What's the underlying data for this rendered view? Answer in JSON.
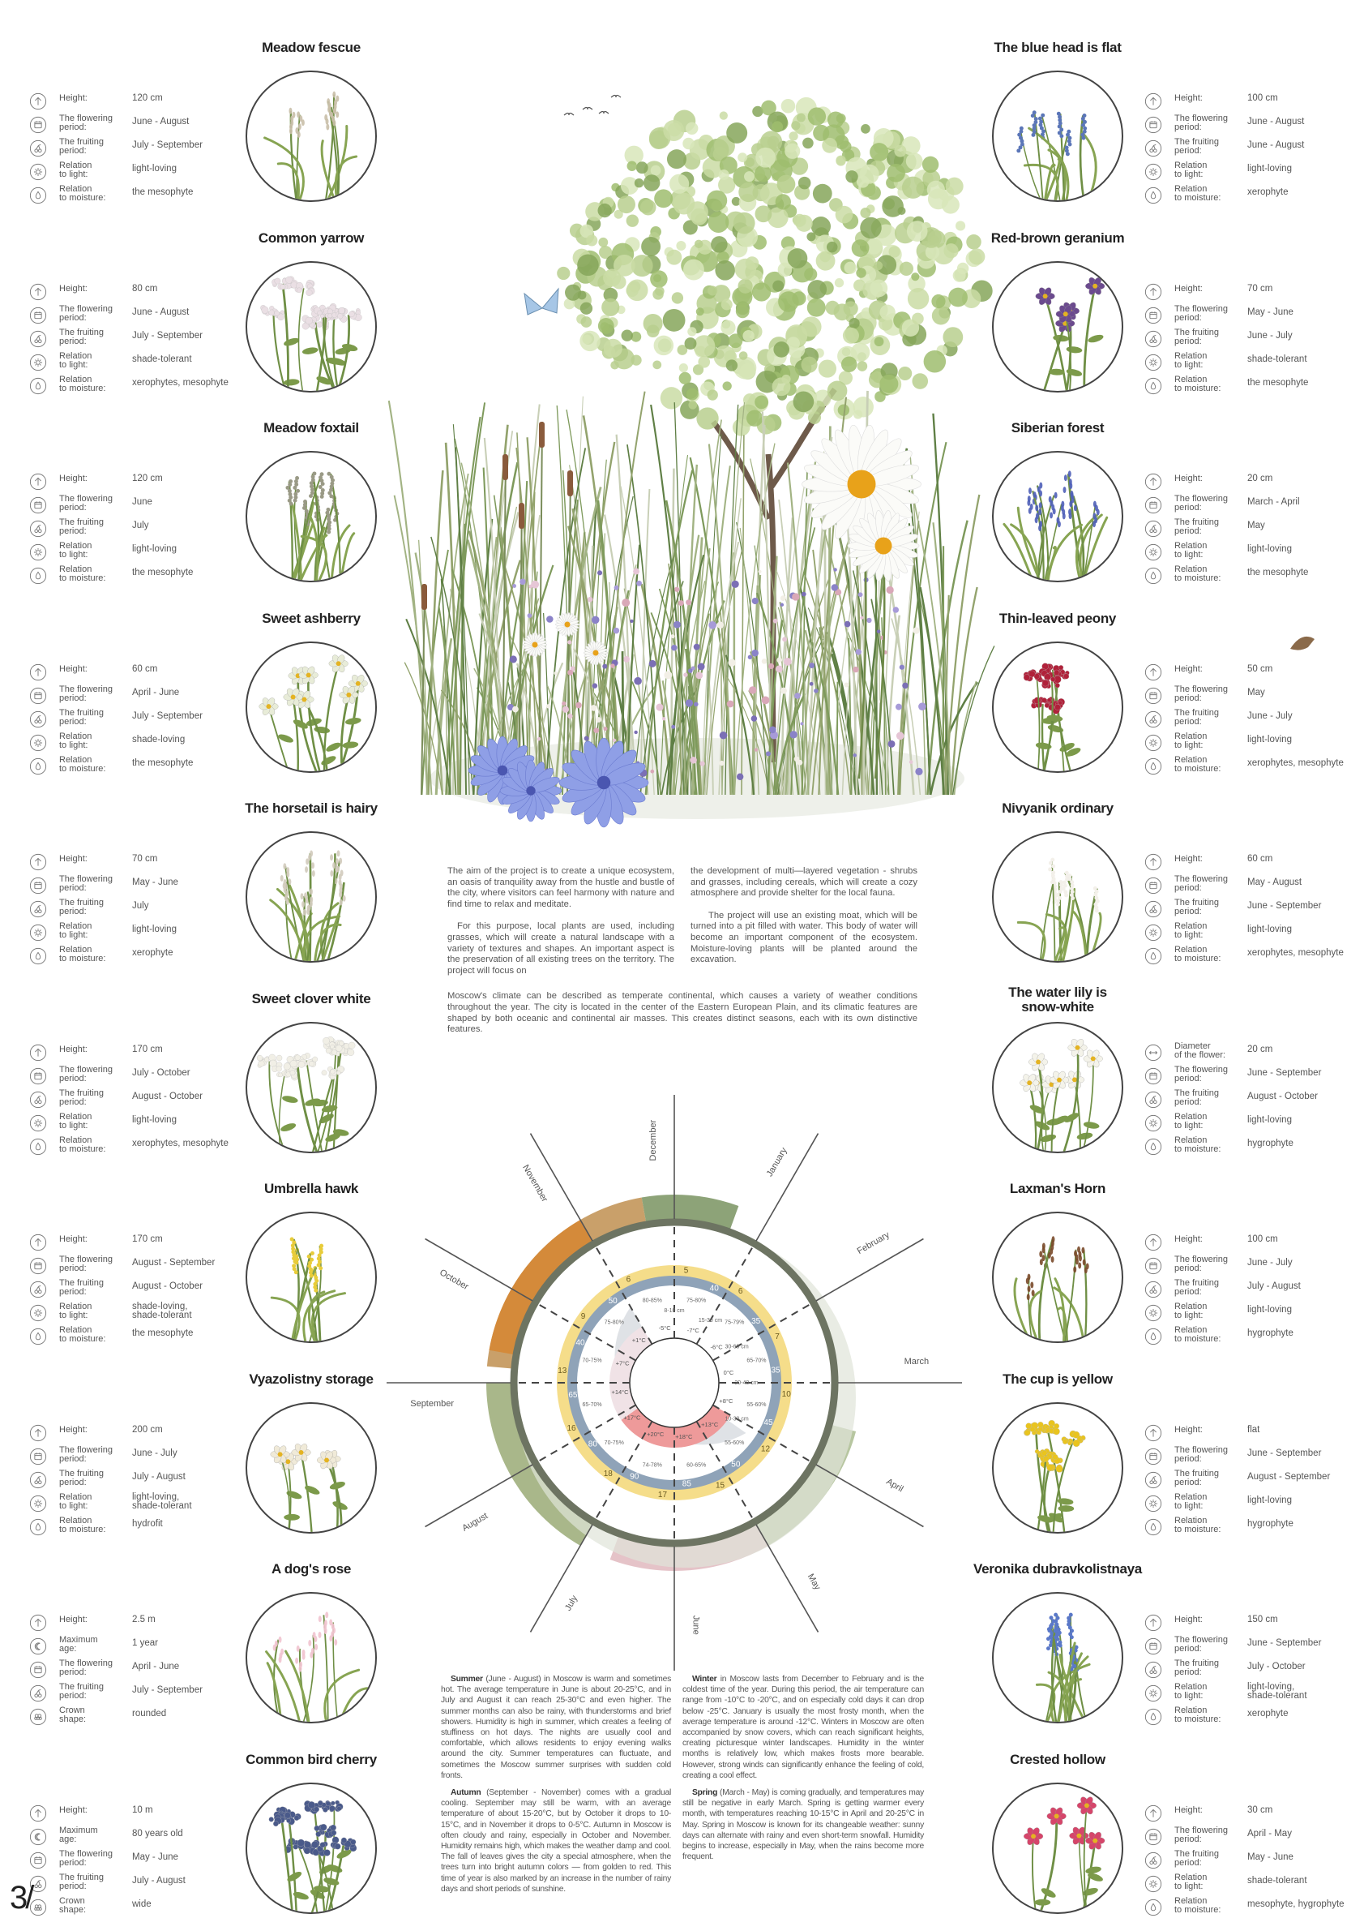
{
  "labels": {
    "height": "Height:",
    "flowering": "The flowering\nperiod:",
    "fruiting": "The fruiting\nperiod:",
    "light": "Relation\nto light:",
    "moisture": "Relation\nto moisture:",
    "max_age": "Maximum\nage:",
    "crown": "Crown\nshape:",
    "diameter": "Diameter\nof the flower:"
  },
  "plants_left": [
    {
      "name": "Meadow fescue",
      "flower_color": "#c9bfa8",
      "rows": [
        [
          "height-icon",
          "height",
          "120 cm"
        ],
        [
          "calendar-icon",
          "flowering",
          "June - August"
        ],
        [
          "cherry-icon",
          "fruiting",
          "July - September"
        ],
        [
          "sun-icon",
          "light",
          "light-loving"
        ],
        [
          "drop-icon",
          "moisture",
          "the mesophyte"
        ]
      ]
    },
    {
      "name": "Common yarrow",
      "flower_color": "#eadfe4",
      "rows": [
        [
          "height-icon",
          "height",
          "80 cm"
        ],
        [
          "calendar-icon",
          "flowering",
          "June - August"
        ],
        [
          "cherry-icon",
          "fruiting",
          "July - September"
        ],
        [
          "sun-icon",
          "light",
          "shade-tolerant"
        ],
        [
          "drop-icon",
          "moisture",
          "xerophytes, mesophyte"
        ]
      ]
    },
    {
      "name": "Meadow foxtail",
      "flower_color": "#9a9a86",
      "rows": [
        [
          "height-icon",
          "height",
          "120 cm"
        ],
        [
          "calendar-icon",
          "flowering",
          "June"
        ],
        [
          "cherry-icon",
          "fruiting",
          "July"
        ],
        [
          "sun-icon",
          "light",
          "light-loving"
        ],
        [
          "drop-icon",
          "moisture",
          "the mesophyte"
        ]
      ]
    },
    {
      "name": "Sweet ashberry",
      "flower_color": "#e8ecd8",
      "rows": [
        [
          "height-icon",
          "height",
          "60 cm"
        ],
        [
          "calendar-icon",
          "flowering",
          "April - June"
        ],
        [
          "cherry-icon",
          "fruiting",
          "July - September"
        ],
        [
          "sun-icon",
          "light",
          "shade-loving"
        ],
        [
          "drop-icon",
          "moisture",
          "the mesophyte"
        ]
      ]
    },
    {
      "name": "The horsetail is hairy",
      "flower_color": "#d2cbbd",
      "rows": [
        [
          "height-icon",
          "height",
          "70 cm"
        ],
        [
          "calendar-icon",
          "flowering",
          "May - June"
        ],
        [
          "cherry-icon",
          "fruiting",
          "July"
        ],
        [
          "sun-icon",
          "light",
          "light-loving"
        ],
        [
          "drop-icon",
          "moisture",
          "xerophyte"
        ]
      ]
    },
    {
      "name": "Sweet clover white",
      "flower_color": "#f1efe6",
      "rows": [
        [
          "height-icon",
          "height",
          "170 cm"
        ],
        [
          "calendar-icon",
          "flowering",
          "July - October"
        ],
        [
          "cherry-icon",
          "fruiting",
          "August - October"
        ],
        [
          "sun-icon",
          "light",
          "light-loving"
        ],
        [
          "drop-icon",
          "moisture",
          "xerophytes, mesophyte"
        ]
      ]
    },
    {
      "name": "Umbrella hawk",
      "flower_color": "#e8cc3a",
      "rows": [
        [
          "height-icon",
          "height",
          "170  cm"
        ],
        [
          "calendar-icon",
          "flowering",
          "August - September"
        ],
        [
          "cherry-icon",
          "fruiting",
          "August - October"
        ],
        [
          "sun-icon",
          "light",
          "shade-loving,\nshade-tolerant"
        ],
        [
          "drop-icon",
          "moisture",
          "the mesophyte"
        ]
      ]
    },
    {
      "name": "Vyazolistny storage",
      "flower_color": "#f0ead8",
      "rows": [
        [
          "height-icon",
          "height",
          "200 cm"
        ],
        [
          "calendar-icon",
          "flowering",
          "June - July"
        ],
        [
          "cherry-icon",
          "fruiting",
          "July - August"
        ],
        [
          "sun-icon",
          "light",
          "light-loving,\nshade-tolerant"
        ],
        [
          "drop-icon",
          "moisture",
          "hydrofit"
        ]
      ]
    },
    {
      "name": "A dog's rose",
      "flower_color": "#f1c3cf",
      "rows": [
        [
          "height-icon",
          "height",
          "2.5 m"
        ],
        [
          "age-icon",
          "max_age",
          "1 year"
        ],
        [
          "calendar-icon",
          "flowering",
          "April - June"
        ],
        [
          "cherry-icon",
          "fruiting",
          "July - September"
        ],
        [
          "crown-icon",
          "crown",
          "rounded"
        ]
      ]
    },
    {
      "name": "Common bird cherry",
      "flower_color": "#4a5a8a",
      "rows": [
        [
          "height-icon",
          "height",
          "10 m"
        ],
        [
          "age-icon",
          "max_age",
          "80 years old"
        ],
        [
          "calendar-icon",
          "flowering",
          "May - June"
        ],
        [
          "cherry-icon",
          "fruiting",
          "July - August"
        ],
        [
          "crown-icon",
          "crown",
          "wide"
        ]
      ]
    }
  ],
  "plants_right": [
    {
      "name": "The blue head is flat",
      "flower_color": "#5b76b8",
      "rows": [
        [
          "height-icon",
          "height",
          "100 cm"
        ],
        [
          "calendar-icon",
          "flowering",
          "June - August"
        ],
        [
          "cherry-icon",
          "fruiting",
          "June - August"
        ],
        [
          "sun-icon",
          "light",
          "light-loving"
        ],
        [
          "drop-icon",
          "moisture",
          "xerophyte"
        ]
      ]
    },
    {
      "name": "Red-brown geranium",
      "flower_color": "#6b4a8e",
      "rows": [
        [
          "height-icon",
          "height",
          " 70 cm"
        ],
        [
          "calendar-icon",
          "flowering",
          "May - June"
        ],
        [
          "cherry-icon",
          "fruiting",
          "June - July"
        ],
        [
          "sun-icon",
          "light",
          "shade-tolerant"
        ],
        [
          "drop-icon",
          "moisture",
          "the mesophyte"
        ]
      ]
    },
    {
      "name": "Siberian forest",
      "flower_color": "#4f5fb8",
      "rows": [
        [
          "height-icon",
          "height",
          "20 cm"
        ],
        [
          "calendar-icon",
          "flowering",
          "March - April"
        ],
        [
          "cherry-icon",
          "fruiting",
          "May"
        ],
        [
          "sun-icon",
          "light",
          "light-loving"
        ],
        [
          "drop-icon",
          "moisture",
          "the mesophyte"
        ]
      ]
    },
    {
      "name": "Thin-leaved peony",
      "flower_color": "#b0213a",
      "rows": [
        [
          "height-icon",
          "height",
          "50 cm"
        ],
        [
          "calendar-icon",
          "flowering",
          "May"
        ],
        [
          "cherry-icon",
          "fruiting",
          "June - July"
        ],
        [
          "sun-icon",
          "light",
          "light-loving"
        ],
        [
          "drop-icon",
          "moisture",
          "xerophytes, mesophyte"
        ]
      ]
    },
    {
      "name": "Nivyanik ordinary",
      "flower_color": "#f3f0ea",
      "rows": [
        [
          "height-icon",
          "height",
          "60 cm"
        ],
        [
          "calendar-icon",
          "flowering",
          "May - August"
        ],
        [
          "cherry-icon",
          "fruiting",
          "June - September"
        ],
        [
          "sun-icon",
          "light",
          "light-loving"
        ],
        [
          "drop-icon",
          "moisture",
          "xerophytes, mesophyte"
        ]
      ]
    },
    {
      "name": "The water lily is\nsnow-white",
      "flower_color": "#f4f3ea",
      "rows": [
        [
          "diameter-icon",
          "diameter",
          "20 cm"
        ],
        [
          "calendar-icon",
          "flowering",
          "June - September"
        ],
        [
          "cherry-icon",
          "fruiting",
          "August - October"
        ],
        [
          "sun-icon",
          "light",
          "light-loving"
        ],
        [
          "drop-icon",
          "moisture",
          "hygrophyte"
        ]
      ]
    },
    {
      "name": "Laxman's Horn",
      "flower_color": "#7a4a2a",
      "rows": [
        [
          "height-icon",
          "height",
          "100 cm"
        ],
        [
          "calendar-icon",
          "flowering",
          "June - July"
        ],
        [
          "cherry-icon",
          "fruiting",
          "July - August"
        ],
        [
          "sun-icon",
          "light",
          "light-loving"
        ],
        [
          "drop-icon",
          "moisture",
          "hygrophyte"
        ]
      ]
    },
    {
      "name": "The cup is yellow",
      "flower_color": "#e9c41e",
      "rows": [
        [
          "height-icon",
          "height",
          "flat"
        ],
        [
          "calendar-icon",
          "flowering",
          "June - September"
        ],
        [
          "cherry-icon",
          "fruiting",
          "August - September"
        ],
        [
          "sun-icon",
          "light",
          "light-loving"
        ],
        [
          "drop-icon",
          "moisture",
          "hygrophyte"
        ]
      ]
    },
    {
      "name": "Veronika dubravkolistnaya",
      "flower_color": "#5a78c8",
      "rows": [
        [
          "height-icon",
          "height",
          "150 cm"
        ],
        [
          "calendar-icon",
          "flowering",
          "June - September"
        ],
        [
          "cherry-icon",
          "fruiting",
          "July - October"
        ],
        [
          "sun-icon",
          "light",
          "light-loving,\nshade-tolerant"
        ],
        [
          "drop-icon",
          "moisture",
          "xerophyte"
        ]
      ]
    },
    {
      "name": "Crested hollow",
      "flower_color": "#d6456a",
      "rows": [
        [
          "height-icon",
          "height",
          "30 cm"
        ],
        [
          "calendar-icon",
          "flowering",
          "April - May"
        ],
        [
          "cherry-icon",
          "fruiting",
          "May - June"
        ],
        [
          "sun-icon",
          "light",
          "shade-tolerant"
        ],
        [
          "drop-icon",
          "moisture",
          "mesophyte, hygrophyte"
        ]
      ]
    }
  ],
  "intro": {
    "col1": [
      "The aim of the project is to create a unique ecosystem, an oasis of tranquility away from the hustle and bustle of the city, where visitors can feel harmony with nature and find time to relax and meditate.",
      "For this purpose, local plants are used, including grasses, which will create a natural landscape with a variety of textures and shapes. An important aspect is the preservation of all existing trees on the territory. The project will focus on"
    ],
    "col2": [
      "the development of multi—layered vegetation - shrubs and grasses, including cereals, which will create a cozy atmosphere and provide shelter for the local fauna.",
      "The project will use an existing moat, which will be turned into a pit filled with water. This body of water will become an important component of the ecosystem. Moisture-loving plants will be planted around the excavation."
    ]
  },
  "climate": "Moscow's climate can be described as temperate continental, which causes a variety of weather conditions throughout the year. The city is located in the center of the Eastern European Plain, and its climatic features are shaped by both oceanic and continental air masses. This creates distinct seasons, each with its own distinctive features.",
  "seasons": [
    {
      "lead": "Summer",
      "text": " (June - August) in Moscow is warm and sometimes hot. The average temperature in June is about 20-25°C, and in July and August it can reach 25-30°C and even higher. The summer months can also be rainy, with thunderstorms and brief showers. Humidity is high in summer, which creates a feeling of stuffiness on hot days. The nights are usually cool and comfortable, which allows residents to enjoy evening walks around the city. Summer temperatures can fluctuate, and sometimes the Moscow summer surprises with sudden cold fronts."
    },
    {
      "lead": "Autumn",
      "text": " (September - November) comes with a gradual cooling. September may still be warm, with an average temperature of about 15-20°C, but by October it drops to 10-15°C, and in November it drops to 0-5°C. Autumn in Moscow is often cloudy and rainy, especially in October and November. Humidity remains high, which makes the weather damp and cool. The fall of leaves gives the city a special atmosphere, when the trees turn into bright autumn colors — from golden to red. This time of year is also marked by an increase in the number of rainy days and short periods of sunshine."
    },
    {
      "lead": "Winter",
      "text": " in Moscow lasts from December to February and is the coldest time of the year. During this period, the air temperature can range from -10°C to -20°C, and on especially cold days it can drop below -25°C. January is usually the most frosty month, when the average temperature is around -12°C. Winters in Moscow are often accompanied by snow covers, which can reach significant heights, creating picturesque winter landscapes. Humidity in the winter months is relatively low, which makes frosts more bearable. However, strong winds can significantly enhance the feeling of cold, creating a cool effect."
    },
    {
      "lead": "Spring",
      "text": " (March - May) is coming gradually, and temperatures may still be negative in early March. Spring is getting warmer every month, with temperatures reaching 10-15°C in April and 20-25°C in May. Spring in Moscow is known for its changeable weather: sunny days can alternate with rainy and even short-term snowfall. Humidity begins to increase, especially in May, when the rains become more frequent."
    }
  ],
  "wheel": {
    "colors": {
      "sun": "#f5dd8a",
      "precip": "#8fa3b8",
      "warm": "#ee9a9a",
      "cold": "#dfe2e6",
      "rim": "#6d7462"
    },
    "months": [
      {
        "name": "March",
        "sun": "10",
        "precip": "35",
        "humidity": "65-70%",
        "temp": "0°C",
        "snow": "20-40 cm"
      },
      {
        "name": "February",
        "sun": "7",
        "precip": "35",
        "humidity": "75-79%",
        "temp": "-6°C",
        "snow": "30-60 cm"
      },
      {
        "name": "January",
        "sun": "6",
        "precip": "40",
        "humidity": "75-80%",
        "temp": "-7°C",
        "snow": "15-30 cm"
      },
      {
        "name": "December",
        "sun": "5",
        "precip": "",
        "humidity": "80-85%",
        "temp": "-5°C",
        "snow": "8-10 cm"
      },
      {
        "name": "November",
        "sun": "6",
        "precip": "50",
        "humidity": "75-80%",
        "temp": "+1°C",
        "snow": ""
      },
      {
        "name": "October",
        "sun": "9",
        "precip": "40",
        "humidity": "70-75%",
        "temp": "+7°C",
        "snow": ""
      },
      {
        "name": "September",
        "sun": "13",
        "precip": "65",
        "humidity": "65-70%",
        "temp": "+14°C",
        "snow": ""
      },
      {
        "name": "August",
        "sun": "16",
        "precip": "80",
        "humidity": "70-75%",
        "temp": "+17°C",
        "snow": ""
      },
      {
        "name": "July",
        "sun": "18",
        "precip": "90",
        "humidity": "74-78%",
        "temp": "+20°C",
        "snow": ""
      },
      {
        "name": "June",
        "sun": "17",
        "precip": "85",
        "humidity": "60-65%",
        "temp": "+18°C",
        "snow": ""
      },
      {
        "name": "May",
        "sun": "15",
        "precip": "50",
        "humidity": "55-60%",
        "temp": "+13°C",
        "snow": ""
      },
      {
        "name": "April",
        "sun": "12",
        "precip": "45",
        "humidity": "55-60%",
        "temp": "+8°C",
        "snow": "10-30 cm"
      }
    ]
  },
  "page_number": "3/"
}
